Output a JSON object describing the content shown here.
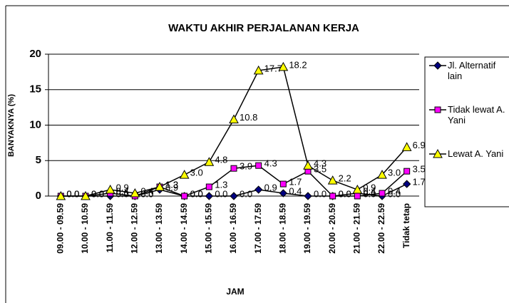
{
  "chart_data": {
    "type": "line",
    "title": "WAKTU AKHIR PERJALANAN KERJA",
    "x_label": "JAM",
    "y_label": "BANYAKNYA (%)",
    "categories": [
      "09.00 - 09.59",
      "10.00 - 10.59",
      "11.00 - 11.59",
      "12.00 - 12.59",
      "13.00 - 13.59",
      "14.00 - 14.59",
      "15.00 - 15.59",
      "16.00 - 16.59",
      "17.00 - 17.59",
      "18.00 - 18.59",
      "19.00 - 19.59",
      "20.00 - 20.59",
      "21.00 - 21.59",
      "22.00 - 22.59",
      "Tidak tetap"
    ],
    "series": [
      {
        "name": "Jl. Alternatif lain",
        "color": "#000080",
        "marker": "diamond",
        "values": [
          0,
          0,
          0,
          0,
          0.9,
          0,
          0,
          0,
          0.9,
          0.4,
          0,
          0,
          0.4,
          0,
          1.7
        ],
        "value_labels": [
          "0.0",
          "0.0",
          "0.0",
          "0.0",
          "0.9",
          "0.0",
          "0.0",
          "0.0",
          "0.9",
          "0.4",
          "0.0",
          "0.0",
          "0.4",
          "0.0",
          "1.7"
        ]
      },
      {
        "name": "Tidak lewat A. Yani",
        "color": "#ff00ff",
        "marker": "square",
        "values": [
          0,
          0,
          0.4,
          0,
          1.3,
          0,
          1.3,
          3.9,
          4.3,
          1.7,
          3.5,
          0,
          0,
          0.4,
          3.5
        ],
        "value_labels": [
          "0.0",
          "0.0",
          "0.4",
          "0.0",
          "1.3",
          "0.0",
          "1.3",
          "3.9",
          "4.3",
          "1.7",
          "3.5",
          "0.0",
          "0.0",
          "0.4",
          "3.5"
        ]
      },
      {
        "name": "Lewat A. Yani",
        "color": "#ffff00",
        "marker": "triangle",
        "values": [
          0,
          0,
          0.9,
          0.4,
          1.3,
          3.0,
          4.8,
          10.8,
          17.7,
          18.2,
          4.3,
          2.2,
          0.9,
          3.0,
          6.9
        ],
        "value_labels": [
          "0.0",
          "0.0",
          "0.9",
          "0.4",
          "1.3",
          "3.0",
          "4.8",
          "10.8",
          "17.7",
          "18.2",
          "4.3",
          "2.2",
          "0.9",
          "3.0",
          "6.9"
        ]
      }
    ],
    "ylim": [
      0,
      20
    ],
    "yticks": [
      0,
      5,
      10,
      15,
      20
    ],
    "grid": true,
    "legend": "right"
  }
}
